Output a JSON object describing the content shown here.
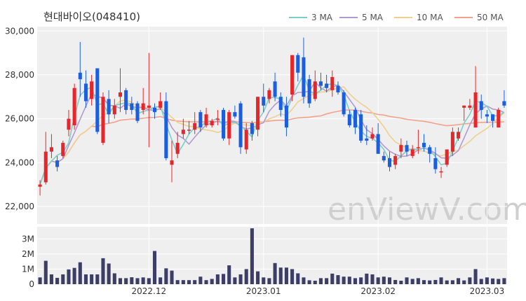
{
  "chart_data": {
    "type": "candlestick",
    "title": "현대바이오(048410)",
    "watermark": "enViewV.com",
    "legend": [
      {
        "label": "3 MA",
        "color": "#7ccfc9"
      },
      {
        "label": "5 MA",
        "color": "#b39ad0"
      },
      {
        "label": "10 MA",
        "color": "#f0cf8f"
      },
      {
        "label": "50 MA",
        "color": "#f4a18a"
      }
    ],
    "price_ticks": [
      "30,000",
      "28,000",
      "26,000",
      "24,000",
      "22,000"
    ],
    "price_tick_values": [
      30000,
      28000,
      26000,
      24000,
      22000
    ],
    "ylim": [
      21200,
      30200
    ],
    "volume_ticks": [
      "3M",
      "2M",
      "1M",
      "0"
    ],
    "volume_tick_values": [
      3000000,
      2000000,
      1000000,
      0
    ],
    "vol_ylim": [
      0,
      3800000
    ],
    "x_ticks": [
      {
        "label": "2022.12",
        "index": 19
      },
      {
        "label": "2023.01",
        "index": 39
      },
      {
        "label": "2023.02",
        "index": 59
      },
      {
        "label": "2023.03",
        "index": 78
      }
    ],
    "ohlc": [
      [
        22900,
        23000,
        22500,
        23200
      ],
      [
        23100,
        24500,
        23000,
        25400
      ],
      [
        24500,
        24700,
        24200,
        25300
      ],
      [
        24100,
        23800,
        23600,
        24300
      ],
      [
        24300,
        24900,
        24200,
        25000
      ],
      [
        25500,
        26000,
        25200,
        26400
      ],
      [
        25700,
        27400,
        25500,
        27600
      ],
      [
        28100,
        27800,
        27000,
        29500
      ],
      [
        27600,
        26800,
        26500,
        28200
      ],
      [
        26900,
        27700,
        26600,
        28000
      ],
      [
        28300,
        25400,
        25300,
        28300
      ],
      [
        24900,
        27000,
        24800,
        27200
      ],
      [
        26900,
        26200,
        25800,
        27300
      ],
      [
        26200,
        26600,
        26000,
        26900
      ],
      [
        27000,
        27200,
        26300,
        28300
      ],
      [
        27300,
        26400,
        26200,
        27400
      ],
      [
        26700,
        26400,
        26200,
        27000
      ],
      [
        26700,
        25900,
        25800,
        26800
      ],
      [
        26400,
        26700,
        26200,
        27400
      ],
      [
        26500,
        26600,
        24700,
        29000
      ],
      [
        26500,
        26300,
        26000,
        26700
      ],
      [
        26500,
        26800,
        26400,
        27200
      ],
      [
        26800,
        24200,
        24100,
        27200
      ],
      [
        23900,
        24100,
        23100,
        25000
      ],
      [
        24400,
        24900,
        24200,
        25400
      ],
      [
        25300,
        25500,
        25100,
        26000
      ],
      [
        25500,
        25500,
        25300,
        25900
      ],
      [
        25500,
        25800,
        25300,
        26300
      ],
      [
        26300,
        25600,
        25400,
        26400
      ],
      [
        25700,
        26200,
        25600,
        26500
      ],
      [
        25700,
        25900,
        25600,
        26000
      ],
      [
        26000,
        26000,
        25700,
        26400
      ],
      [
        26400,
        25100,
        25000,
        26500
      ],
      [
        25100,
        26300,
        24800,
        26400
      ],
      [
        26300,
        26100,
        26000,
        26600
      ],
      [
        26700,
        24700,
        24400,
        26800
      ],
      [
        24600,
        25500,
        24400,
        25800
      ],
      [
        25800,
        25300,
        25000,
        25900
      ],
      [
        25500,
        27000,
        25200,
        27000
      ],
      [
        27000,
        26600,
        26300,
        27600
      ],
      [
        26900,
        27300,
        26700,
        27400
      ],
      [
        27700,
        27000,
        26800,
        28100
      ],
      [
        27000,
        26400,
        26100,
        27200
      ],
      [
        26600,
        25600,
        25200,
        27000
      ],
      [
        27100,
        28900,
        26800,
        28900
      ],
      [
        28900,
        28100,
        27700,
        29000
      ],
      [
        28800,
        27000,
        26700,
        29700
      ],
      [
        27800,
        26700,
        26500,
        28000
      ],
      [
        26900,
        27700,
        26800,
        28200
      ],
      [
        27700,
        27500,
        27300,
        28100
      ],
      [
        27600,
        27400,
        27200,
        28000
      ],
      [
        27300,
        27900,
        27000,
        28200
      ],
      [
        27500,
        27200,
        27100,
        27700
      ],
      [
        27200,
        26200,
        26100,
        27300
      ],
      [
        26200,
        25700,
        25600,
        26400
      ],
      [
        26400,
        25600,
        25300,
        26500
      ],
      [
        26200,
        25000,
        24900,
        26400
      ],
      [
        25100,
        25000,
        24800,
        25700
      ],
      [
        25100,
        25300,
        25000,
        25600
      ],
      [
        25300,
        24400,
        24400,
        25800
      ],
      [
        24300,
        24100,
        24000,
        24500
      ],
      [
        24200,
        23800,
        23600,
        24500
      ],
      [
        23900,
        24300,
        23700,
        24400
      ],
      [
        24500,
        24800,
        24200,
        25100
      ],
      [
        24800,
        24500,
        24300,
        25000
      ],
      [
        24300,
        24600,
        24200,
        24800
      ],
      [
        24700,
        24700,
        24400,
        25500
      ],
      [
        24900,
        24700,
        24500,
        25300
      ],
      [
        24700,
        24400,
        24000,
        24800
      ],
      [
        24200,
        23700,
        23500,
        24700
      ],
      [
        23600,
        23600,
        23300,
        23800
      ],
      [
        23900,
        24600,
        23800,
        24600
      ],
      [
        24500,
        25400,
        24300,
        25600
      ],
      [
        25100,
        25400,
        25000,
        25600
      ],
      [
        26500,
        26600,
        25900,
        26600
      ],
      [
        26500,
        26600,
        26400,
        26900
      ],
      [
        25600,
        27200,
        25600,
        28400
      ],
      [
        26800,
        26400,
        26000,
        27100
      ],
      [
        26200,
        26100,
        25800,
        26400
      ],
      [
        26200,
        25900,
        25600,
        26200
      ],
      [
        25600,
        26400,
        25600,
        26500
      ],
      [
        26800,
        26600,
        26500,
        27300
      ]
    ],
    "volume": [
      450000,
      1550000,
      650000,
      420000,
      650000,
      980000,
      1080000,
      1450000,
      650000,
      650000,
      650000,
      1720000,
      1370000,
      720000,
      400000,
      400000,
      460000,
      400000,
      450000,
      400000,
      2200000,
      450000,
      1050000,
      900000,
      270000,
      270000,
      270000,
      270000,
      500000,
      270000,
      350000,
      650000,
      680000,
      1250000,
      450000,
      650000,
      1000000,
      3700000,
      850000,
      450000,
      400000,
      1400000,
      1100000,
      1100000,
      1000000,
      720000,
      450000,
      260000,
      230000,
      400000,
      400000,
      700000,
      600000,
      500000,
      500000,
      400000,
      450000,
      700000,
      650000,
      450000,
      500000,
      450000,
      280000,
      230000,
      450000,
      350000,
      400000,
      270000,
      250000,
      280000,
      450000,
      250000,
      260000,
      400000,
      250000,
      450000,
      1000000,
      350000,
      450000,
      380000,
      350000,
      400000
    ]
  }
}
